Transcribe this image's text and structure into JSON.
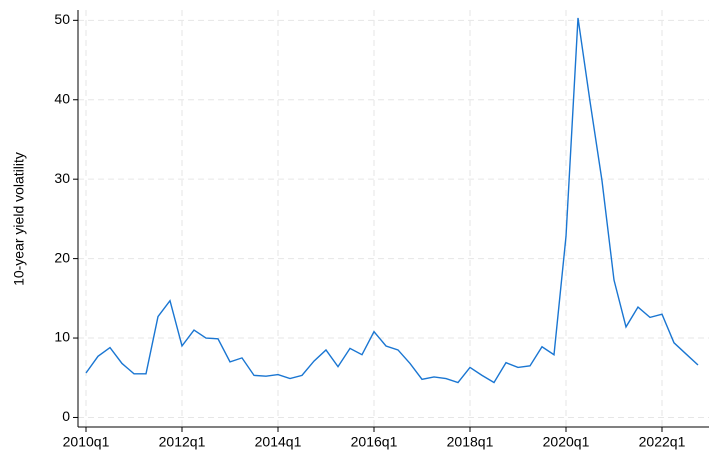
{
  "chart_data": {
    "type": "line",
    "y_label": "10-year yield volatility",
    "categories": [
      "2010q1",
      null,
      null,
      null,
      null,
      null,
      null,
      null,
      "2012q1",
      null,
      null,
      null,
      null,
      null,
      null,
      null,
      "2014q1",
      null,
      null,
      null,
      null,
      null,
      null,
      null,
      "2016q1",
      null,
      null,
      null,
      null,
      null,
      null,
      null,
      "2018q1",
      null,
      null,
      null,
      null,
      null,
      null,
      null,
      "2020q1",
      null,
      null,
      null,
      null,
      null,
      null,
      null,
      "2022q1",
      null,
      null,
      null
    ],
    "series": [
      {
        "name": "10-year yield volatility",
        "color": "#1a76d2",
        "values": [
          5.6,
          7.7,
          8.8,
          6.8,
          5.5,
          5.5,
          12.7,
          14.7,
          9.0,
          11.0,
          10.0,
          9.9,
          7.0,
          7.5,
          5.3,
          5.2,
          5.4,
          4.9,
          5.3,
          7.1,
          8.5,
          6.4,
          8.7,
          7.9,
          10.8,
          9.0,
          8.5,
          6.8,
          4.8,
          5.1,
          4.9,
          4.4,
          6.3,
          5.3,
          4.4,
          6.9,
          6.3,
          6.5,
          8.9,
          7.9,
          22.8,
          50.3,
          39.8,
          29.8,
          17.3,
          11.4,
          13.9,
          12.6,
          13.0,
          9.4,
          8.0,
          6.6
        ]
      }
    ],
    "ylim": [
      -1.2,
      51.3
    ],
    "yticks": [
      0,
      10,
      20,
      30,
      40,
      50
    ],
    "grid": true
  }
}
